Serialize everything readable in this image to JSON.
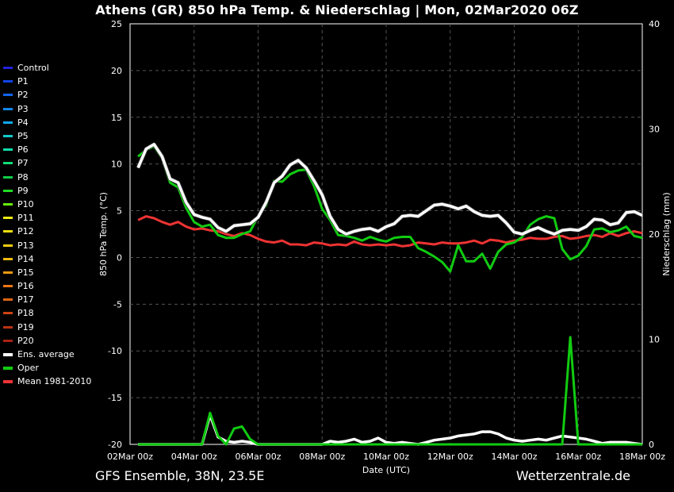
{
  "title": "Athens  (GR)  850 hPa Temp. & Niederschlag | Mon, 02Mar2020 06Z",
  "footer": {
    "left": "GFS Ensemble, 38N, 23.5E",
    "right": "Wetterzentrale.de"
  },
  "legend": [
    {
      "label": "Control",
      "color": "#2222dd"
    },
    {
      "label": "P1",
      "color": "#1144ee"
    },
    {
      "label": "P2",
      "color": "#1166ee"
    },
    {
      "label": "P3",
      "color": "#1188ee"
    },
    {
      "label": "P4",
      "color": "#11aaee"
    },
    {
      "label": "P5",
      "color": "#11cccc"
    },
    {
      "label": "P6",
      "color": "#11ddaa"
    },
    {
      "label": "P7",
      "color": "#11dd77"
    },
    {
      "label": "P8",
      "color": "#11cc44"
    },
    {
      "label": "P9",
      "color": "#22dd22"
    },
    {
      "label": "P10",
      "color": "#66ee11"
    },
    {
      "label": "P11",
      "color": "#eeee11"
    },
    {
      "label": "P12",
      "color": "#eedd11"
    },
    {
      "label": "P13",
      "color": "#eecc11"
    },
    {
      "label": "P14",
      "color": "#eebb11"
    },
    {
      "label": "P15",
      "color": "#ee9911"
    },
    {
      "label": "P16",
      "color": "#ee7711"
    },
    {
      "label": "P17",
      "color": "#dd6611"
    },
    {
      "label": "P18",
      "color": "#cc4411"
    },
    {
      "label": "P19",
      "color": "#bb3311"
    },
    {
      "label": "P20",
      "color": "#aa2211"
    },
    {
      "label": "Ens. average",
      "color": "#ffffff"
    },
    {
      "label": "Oper",
      "color": "#11cc11"
    },
    {
      "label": "Mean 1981-2010",
      "color": "#ee3333"
    }
  ],
  "chart_data": {
    "type": "line",
    "xlabel": "Date (UTC)",
    "ylabel": "850 hPa Temp. (°C)",
    "y2label": "Niederschlag (mm)",
    "ylim": [
      -20,
      25
    ],
    "y2lim": [
      0,
      40
    ],
    "yticks": [
      -20,
      -15,
      -10,
      -5,
      0,
      5,
      10,
      15,
      20,
      25
    ],
    "y2ticks": [
      0,
      10,
      20,
      30,
      40
    ],
    "xticks": [
      "02Mar 00z",
      "04Mar 00z",
      "06Mar 00z",
      "08Mar 00z",
      "10Mar 00z",
      "12Mar 00z",
      "14Mar 00z",
      "16Mar 00z",
      "18Mar 00z"
    ],
    "grid": true,
    "x_hours": [
      6,
      12,
      18,
      24,
      30,
      36,
      42,
      48,
      54,
      60,
      66,
      72,
      78,
      84,
      90,
      96,
      102,
      108,
      114,
      120,
      126,
      132,
      138,
      144,
      150,
      156,
      162,
      168,
      174,
      180,
      186,
      192,
      198,
      204,
      210,
      216,
      222,
      228,
      234,
      240,
      246,
      252,
      258,
      264,
      270,
      276,
      282,
      288,
      294,
      300,
      306,
      312,
      318,
      324,
      330,
      336,
      342,
      348,
      354,
      360,
      366,
      372,
      378,
      384
    ],
    "temperature_series": [
      {
        "name": "Ens. average",
        "values": [
          9.6,
          11.6,
          12.1,
          10.8,
          8.4,
          8.0,
          5.9,
          4.6,
          4.3,
          4.1,
          3.2,
          2.8,
          3.4,
          3.5,
          3.6,
          4.3,
          5.9,
          8.0,
          8.7,
          9.9,
          10.4,
          9.6,
          8.2,
          6.7,
          4.4,
          3.0,
          2.5,
          2.8,
          3.0,
          3.1,
          2.8,
          3.3,
          3.6,
          4.4,
          4.5,
          4.4,
          5.0,
          5.6,
          5.7,
          5.5,
          5.2,
          5.5,
          4.9,
          4.5,
          4.4,
          4.5,
          3.7,
          2.7,
          2.5,
          2.9,
          3.2,
          2.8,
          2.5,
          2.9,
          3.0,
          2.9,
          3.3,
          4.1,
          4.0,
          3.5,
          3.7,
          4.8,
          4.9,
          4.5
        ]
      },
      {
        "name": "Oper",
        "values": [
          10.8,
          11.5,
          11.9,
          10.6,
          8.0,
          7.5,
          5.3,
          3.8,
          3.3,
          3.5,
          2.4,
          2.1,
          2.1,
          2.5,
          2.8,
          4.4,
          5.6,
          8.2,
          8.1,
          8.9,
          9.3,
          9.4,
          7.6,
          5.2,
          4.0,
          2.4,
          2.3,
          2.1,
          1.8,
          2.2,
          1.9,
          1.7,
          2.1,
          2.2,
          2.2,
          1.0,
          0.6,
          0.1,
          -0.5,
          -1.5,
          1.3,
          -0.4,
          -0.4,
          0.4,
          -1.2,
          0.6,
          1.4,
          1.6,
          2.2,
          3.5,
          4.1,
          4.4,
          4.2,
          0.9,
          -0.2,
          0.2,
          1.2,
          3.0,
          3.1,
          2.7,
          2.9,
          3.3,
          2.3,
          2.1
        ]
      },
      {
        "name": "Mean 1981-2010",
        "values": [
          4.0,
          4.4,
          4.2,
          3.8,
          3.5,
          3.8,
          3.3,
          3.0,
          3.1,
          2.9,
          2.8,
          2.5,
          2.3,
          2.6,
          2.4,
          2.0,
          1.7,
          1.6,
          1.8,
          1.4,
          1.4,
          1.3,
          1.6,
          1.5,
          1.3,
          1.4,
          1.3,
          1.7,
          1.4,
          1.3,
          1.4,
          1.3,
          1.4,
          1.2,
          1.3,
          1.6,
          1.5,
          1.4,
          1.6,
          1.5,
          1.5,
          1.6,
          1.8,
          1.5,
          1.9,
          1.8,
          1.6,
          1.8,
          1.9,
          2.1,
          2.0,
          2.0,
          2.2,
          2.3,
          2.0,
          2.1,
          2.3,
          2.4,
          2.2,
          2.6,
          2.3,
          2.6,
          2.8,
          2.6
        ]
      }
    ],
    "precipitation_series": [
      {
        "name": "Ens. average",
        "values": [
          0,
          0,
          0,
          0,
          0,
          0,
          0,
          0,
          0,
          2.8,
          0.7,
          0.3,
          0.2,
          0.3,
          0.2,
          0,
          0,
          0,
          0,
          0,
          0,
          0,
          0,
          0,
          0.3,
          0.2,
          0.3,
          0.5,
          0.2,
          0.3,
          0.6,
          0.2,
          0.1,
          0.2,
          0.1,
          0,
          0.2,
          0.4,
          0.5,
          0.6,
          0.8,
          0.9,
          1.0,
          1.2,
          1.2,
          1.0,
          0.6,
          0.4,
          0.3,
          0.4,
          0.5,
          0.4,
          0.6,
          0.8,
          0.7,
          0.6,
          0.5,
          0.3,
          0.1,
          0.2,
          0.2,
          0.2,
          0.1,
          0
        ]
      },
      {
        "name": "Oper",
        "values": [
          0,
          0,
          0,
          0,
          0,
          0,
          0,
          0,
          0,
          3.0,
          0.8,
          0,
          1.5,
          1.7,
          0.5,
          0,
          0,
          0,
          0,
          0,
          0,
          0,
          0,
          0,
          0,
          0,
          0,
          0,
          0,
          0,
          0,
          0,
          0,
          0,
          0,
          0,
          0,
          0,
          0,
          0,
          0,
          0,
          0,
          0,
          0,
          0,
          0,
          0,
          0,
          0,
          0,
          0,
          0,
          0,
          10.2,
          0,
          0,
          0,
          0,
          0,
          0,
          0,
          0,
          0
        ]
      }
    ]
  }
}
